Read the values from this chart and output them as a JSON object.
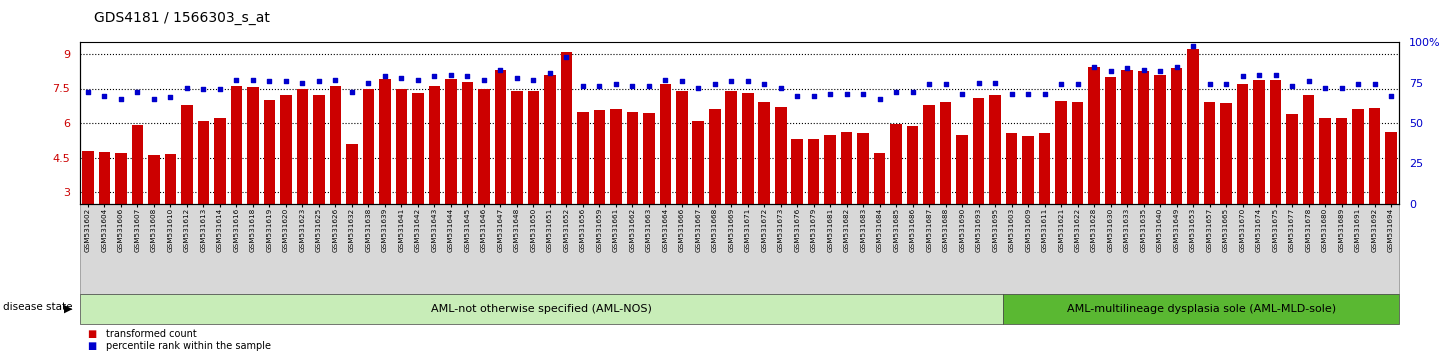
{
  "title": "GDS4181 / 1566303_s_at",
  "samples": [
    "GSM531602",
    "GSM531604",
    "GSM531606",
    "GSM531607",
    "GSM531608",
    "GSM531610",
    "GSM531612",
    "GSM531613",
    "GSM531614",
    "GSM531616",
    "GSM531618",
    "GSM531619",
    "GSM531620",
    "GSM531623",
    "GSM531625",
    "GSM531626",
    "GSM531632",
    "GSM531638",
    "GSM531639",
    "GSM531641",
    "GSM531642",
    "GSM531643",
    "GSM531644",
    "GSM531645",
    "GSM531646",
    "GSM531647",
    "GSM531648",
    "GSM531650",
    "GSM531651",
    "GSM531652",
    "GSM531656",
    "GSM531659",
    "GSM531661",
    "GSM531662",
    "GSM531663",
    "GSM531664",
    "GSM531666",
    "GSM531667",
    "GSM531668",
    "GSM531669",
    "GSM531671",
    "GSM531672",
    "GSM531673",
    "GSM531676",
    "GSM531679",
    "GSM531681",
    "GSM531682",
    "GSM531683",
    "GSM531684",
    "GSM531685",
    "GSM531686",
    "GSM531687",
    "GSM531688",
    "GSM531690",
    "GSM531693",
    "GSM531695",
    "GSM531603",
    "GSM531609",
    "GSM531611",
    "GSM531621",
    "GSM531622",
    "GSM531628",
    "GSM531630",
    "GSM531633",
    "GSM531635",
    "GSM531640",
    "GSM531649",
    "GSM531653",
    "GSM531657",
    "GSM531665",
    "GSM531670",
    "GSM531674",
    "GSM531675",
    "GSM531677",
    "GSM531678",
    "GSM531680",
    "GSM531689",
    "GSM531691",
    "GSM531692",
    "GSM531694"
  ],
  "bar_values": [
    4.8,
    4.75,
    4.7,
    5.9,
    4.6,
    4.65,
    6.8,
    6.1,
    6.2,
    7.6,
    7.55,
    7.0,
    7.2,
    7.5,
    7.2,
    7.6,
    5.1,
    7.5,
    7.9,
    7.5,
    7.3,
    7.6,
    7.9,
    7.8,
    7.5,
    8.3,
    7.4,
    7.4,
    8.1,
    9.1,
    6.5,
    6.55,
    6.6,
    6.5,
    6.45,
    7.7,
    7.4,
    6.1,
    6.6,
    7.4,
    7.3,
    6.9,
    6.7,
    5.3,
    5.3,
    5.5,
    5.6,
    5.55,
    4.7,
    5.95,
    5.85,
    6.8,
    6.9,
    5.5,
    7.1,
    7.2,
    5.55,
    5.45,
    5.55,
    6.95,
    6.9,
    8.45,
    8.0,
    8.3,
    8.25,
    8.1,
    8.4,
    9.2,
    6.9,
    6.85,
    7.7,
    7.85,
    7.85,
    6.4,
    7.2,
    6.2,
    6.2,
    6.6,
    6.65,
    5.6
  ],
  "dot_values": [
    69,
    67,
    65,
    69,
    65,
    66,
    72,
    71,
    71,
    77,
    77,
    76,
    76,
    75,
    76,
    77,
    69,
    75,
    79,
    78,
    77,
    79,
    80,
    79,
    77,
    83,
    78,
    77,
    81,
    91,
    73,
    73,
    74,
    73,
    73,
    77,
    76,
    72,
    74,
    76,
    76,
    74,
    72,
    67,
    67,
    68,
    68,
    68,
    65,
    69,
    69,
    74,
    74,
    68,
    75,
    75,
    68,
    68,
    68,
    74,
    74,
    85,
    82,
    84,
    83,
    82,
    85,
    98,
    74,
    74,
    79,
    80,
    80,
    73,
    76,
    72,
    72,
    74,
    74,
    67
  ],
  "group1_count": 56,
  "group1_label": "AML-not otherwise specified (AML-NOS)",
  "group2_label": "AML-multilineage dysplasia sole (AML-MLD-sole)",
  "disease_state_label": "disease state",
  "legend_bar": "transformed count",
  "legend_dot": "percentile rank within the sample",
  "bar_color": "#cc0000",
  "dot_color": "#0000cc",
  "ylim_left": [
    2.5,
    9.5
  ],
  "ylim_right": [
    0,
    100
  ],
  "yticks_left": [
    3,
    4.5,
    6,
    7.5,
    9
  ],
  "yticks_right": [
    0,
    25,
    50,
    75,
    100
  ],
  "hlines": [
    3,
    4.5,
    6,
    7.5,
    9
  ],
  "group1_bg": "#c8edb8",
  "group2_bg": "#5ab832",
  "xtick_bg": "#d8d8d8",
  "title_fontsize": 10,
  "bar_bottom": 2.5
}
